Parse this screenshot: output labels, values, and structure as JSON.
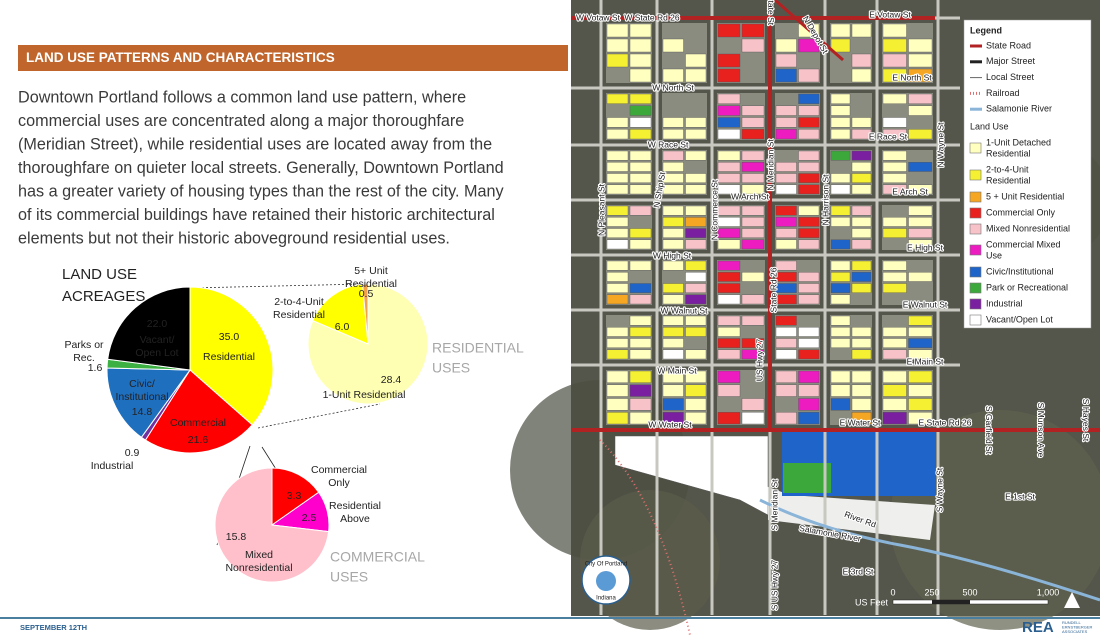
{
  "header": {
    "title": "LAND USE PATTERNS AND CHARACTERISTICS"
  },
  "paragraph": [
    "Downtown Portland follows a common land use pattern, where",
    "commercial uses are concentrated along a major thoroughfare",
    "(Meridian Street), while residential uses are located away from the",
    "thoroughfare on quieter local streets. Generally, Downtown Portland",
    "has a greater variety of housing types than the rest of the city. Many",
    "of its commercial buildings have retained their historic architectural",
    "elements but not their historic aboveground residential uses."
  ],
  "charts": {
    "main": {
      "type": "pie",
      "title": [
        "LAND USE",
        "ACREAGES"
      ],
      "categories": [
        [
          "Residential"
        ],
        [
          "Commercial"
        ],
        [
          "Industrial"
        ],
        [
          "Civic/",
          "Institutional"
        ],
        [
          "Parks or",
          "Rec."
        ],
        [
          "Vacant/",
          "Open Lot"
        ]
      ],
      "values": [
        35.0,
        21.6,
        0.9,
        14.8,
        1.6,
        22.0
      ],
      "value_labels": [
        "35.0",
        "21.6",
        "0.9",
        "14.8",
        "1.6",
        "22.0"
      ],
      "colors": [
        "#ffff00",
        "#ff0000",
        "#7030a0",
        "#1f6fbf",
        "#3cb043",
        "#000000"
      ]
    },
    "residential": {
      "type": "pie",
      "title": [
        "RESIDENTIAL",
        "USES"
      ],
      "categories": [
        [
          "1-Unit Residential"
        ],
        [
          "2-to-4-Unit",
          "Residential"
        ],
        [
          "5+ Unit",
          "Residential"
        ]
      ],
      "values": [
        28.4,
        6.0,
        0.5
      ],
      "value_labels": [
        "28.4",
        "6.0",
        "0.5"
      ],
      "colors": [
        "#ffffb3",
        "#ffff00",
        "#f4a04a"
      ]
    },
    "commercial": {
      "type": "pie",
      "title": [
        "COMMERCIAL",
        "USES"
      ],
      "categories": [
        [
          "Commercial",
          "Only"
        ],
        [
          "Residential",
          "Above"
        ],
        [
          "Mixed",
          "Nonresidential"
        ]
      ],
      "values": [
        3.3,
        2.5,
        15.8
      ],
      "value_labels": [
        "3.3",
        "2.5",
        "15.8"
      ],
      "colors": [
        "#ff0000",
        "#ff00cc",
        "#ffc0cb"
      ]
    }
  },
  "map": {
    "legend_title": "Legend",
    "legend_heading": "Land Use",
    "lines": [
      {
        "label": [
          "State Road"
        ],
        "color": "#b22222",
        "kind": "road"
      },
      {
        "label": [
          "Major Street"
        ],
        "color": "#222222",
        "kind": "road"
      },
      {
        "label": [
          "Local Street"
        ],
        "color": "#666666",
        "kind": "thin"
      },
      {
        "label": [
          "Railroad"
        ],
        "color": "#e07070",
        "kind": "rail"
      },
      {
        "label": [
          "Salamonie River"
        ],
        "color": "#8ab4d8",
        "kind": "road"
      }
    ],
    "land_use": [
      {
        "label": [
          "1-Unit Detached",
          "Residential"
        ],
        "color": "#ffffc0"
      },
      {
        "label": [
          "2-to-4-Unit",
          "Residential"
        ],
        "color": "#f5f032"
      },
      {
        "label": [
          "5 + Unit Residential"
        ],
        "color": "#f5a623"
      },
      {
        "label": [
          "Commercial Only"
        ],
        "color": "#e8201e"
      },
      {
        "label": [
          "Mixed Nonresidential"
        ],
        "color": "#f7c3c8"
      },
      {
        "label": [
          "Commercial Mixed",
          "Use"
        ],
        "color": "#ec1cc0"
      },
      {
        "label": [
          "Civic/Institutional"
        ],
        "color": "#1f64c8"
      },
      {
        "label": [
          "Park or Recreational"
        ],
        "color": "#3ca83c"
      },
      {
        "label": [
          "Industrial"
        ],
        "color": "#7a1fa0"
      },
      {
        "label": [
          "Vacant/Open Lot"
        ],
        "color": "#ffffff"
      }
    ],
    "streets": [
      "W Votaw St",
      "W State Rd 26",
      "E Votaw St",
      "State St",
      "N Depot St",
      "E North St",
      "W North St",
      "W Race St",
      "E Race St",
      "N Meridian St",
      "N Ship St",
      "N Commerce St",
      "W Arch St",
      "N Harrison St",
      "E Arch St",
      "N Pleasant St",
      "N Wayne St",
      "E High St",
      "W High St",
      "State Rd 26",
      "W Walnut St",
      "E Walnut St",
      "E Main St",
      "US Hwy 27",
      "W Main St",
      "W Water St",
      "E Water St",
      "E State Rd 26",
      "S Garfield St",
      "S Munson Ave",
      "S Hayes St",
      "E 1st St",
      "River Rd",
      "Salamonie River",
      "S Meridian St",
      "S US Hwy 27",
      "S Wayne St",
      "E 3rd St"
    ],
    "scale": {
      "unit": "US Feet",
      "labels": [
        "0",
        "250",
        "500",
        "1,000"
      ]
    },
    "seal": [
      "City Of Portland",
      "Indiana"
    ]
  },
  "footer": {
    "date": "SEPTEMBER 12TH",
    "logo": "REA",
    "firm": [
      "RUNDELL",
      "ERNSTBERGER",
      "ASSOCIATES"
    ]
  }
}
